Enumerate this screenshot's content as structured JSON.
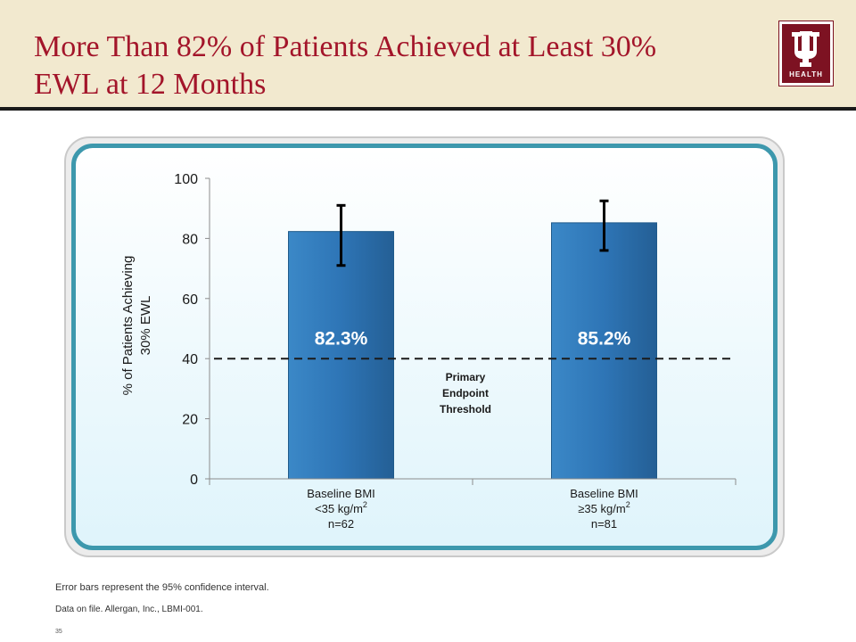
{
  "slide": {
    "title_line1": "More Than 82% of Patients Achieved at Least 30%",
    "title_line2": "EWL at 12 Months",
    "logo_text": "HEALTH",
    "footnote_1": "Error bars represent the 95% confidence interval.",
    "footnote_2": "Data on file. Allergan, Inc., LBMI-001.",
    "slide_number": "35"
  },
  "colors": {
    "title": "#a3152a",
    "bar": "#2e75b6",
    "panel_border": "#3d98ad",
    "logo": "#7d1222"
  },
  "chart_data": {
    "type": "bar",
    "title": "",
    "xlabel": "",
    "ylabel_line1": "% of Patients Achieving",
    "ylabel_line2": "30% EWL",
    "ylim": [
      0,
      100
    ],
    "yticks": [
      0,
      20,
      40,
      60,
      80,
      100
    ],
    "categories": [
      {
        "line1": "Baseline BMI",
        "line2": "<35 kg/m",
        "sup": "2",
        "line3": "n=62"
      },
      {
        "line1": "Baseline BMI",
        "line2": "≥35 kg/m",
        "sup": "2",
        "line3": "n=81"
      }
    ],
    "values": [
      82.3,
      85.2
    ],
    "value_labels": [
      "82.3%",
      "85.2%"
    ],
    "error_bars": [
      {
        "low": 71,
        "high": 91
      },
      {
        "low": 76,
        "high": 92.5
      }
    ],
    "threshold": {
      "value": 40,
      "style": "dashed",
      "label_lines": [
        "Primary",
        "Endpoint",
        "Threshold"
      ]
    },
    "grid": false,
    "legend": "none"
  }
}
